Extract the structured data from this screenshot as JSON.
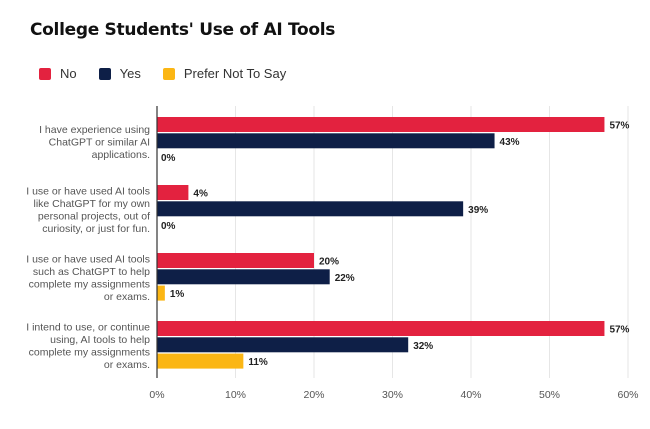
{
  "chart_data": {
    "type": "bar",
    "orientation": "horizontal",
    "title": "College Students' Use of AI Tools",
    "categories": [
      [
        "I have experience using",
        "ChatGPT or similar AI",
        "applications."
      ],
      [
        "I use or have used AI tools",
        "like ChatGPT for my own",
        "personal projects, out of",
        "curiosity, or just for fun."
      ],
      [
        "I use or have used AI tools",
        "such as ChatGPT to help",
        "complete my assignments",
        "or exams."
      ],
      [
        "I intend to use, or continue",
        "using, AI tools to help",
        "complete my assignments",
        "or exams."
      ]
    ],
    "series": [
      {
        "name": "No",
        "color": "#E3223F",
        "values": [
          57,
          4,
          20,
          57
        ]
      },
      {
        "name": "Yes",
        "color": "#0E1F47",
        "values": [
          43,
          39,
          22,
          32
        ]
      },
      {
        "name": "Prefer Not To Say",
        "color": "#FBB614",
        "values": [
          0,
          0,
          1,
          11
        ]
      }
    ],
    "value_suffix": "%",
    "xlim": [
      0,
      60
    ],
    "xticks": [
      "0%",
      "10%",
      "20%",
      "30%",
      "40%",
      "50%",
      "60%"
    ],
    "grid": true,
    "legend_position": "top-left",
    "xlabel": "",
    "ylabel": ""
  }
}
